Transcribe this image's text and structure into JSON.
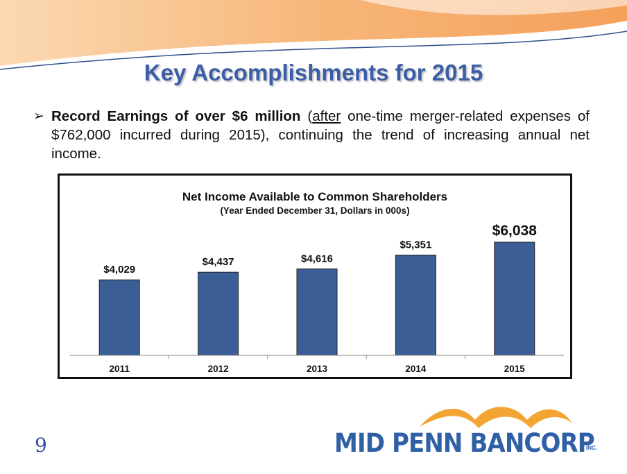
{
  "slide": {
    "title": "Key Accomplishments for 2015",
    "page_number": "9",
    "bullet": {
      "bold": "Record Earnings of over $6 million",
      "paren_open": " (",
      "underlined": "after",
      "rest": " one-time merger-related expenses of $762,000 incurred during 2015), continuing the trend of increasing annual net income."
    },
    "logo": {
      "name": "MID PENN BANCORP",
      "suffix": "INC."
    }
  },
  "colors": {
    "title": "#3b5ea6",
    "bar": "#3a5e95",
    "swoosh_orange": "#f5b070",
    "swoosh_blue": "#2d4f8c",
    "logo_blue": "#2f5fa5",
    "logo_orange": "#f3a533"
  },
  "chart_data": {
    "type": "bar",
    "title": "Net Income Available to Common Shareholders",
    "subtitle": "(Year Ended December 31, Dollars in 000s)",
    "categories": [
      "2011",
      "2012",
      "2013",
      "2014",
      "2015"
    ],
    "values": [
      4029,
      4437,
      4616,
      5351,
      6038
    ],
    "data_labels": [
      "$4,029",
      "$4,437",
      "$4,616",
      "$5,351",
      "$6,038"
    ],
    "ylim": [
      0,
      7000
    ],
    "grid": false,
    "legend": "none",
    "xlabel": "",
    "ylabel": ""
  }
}
